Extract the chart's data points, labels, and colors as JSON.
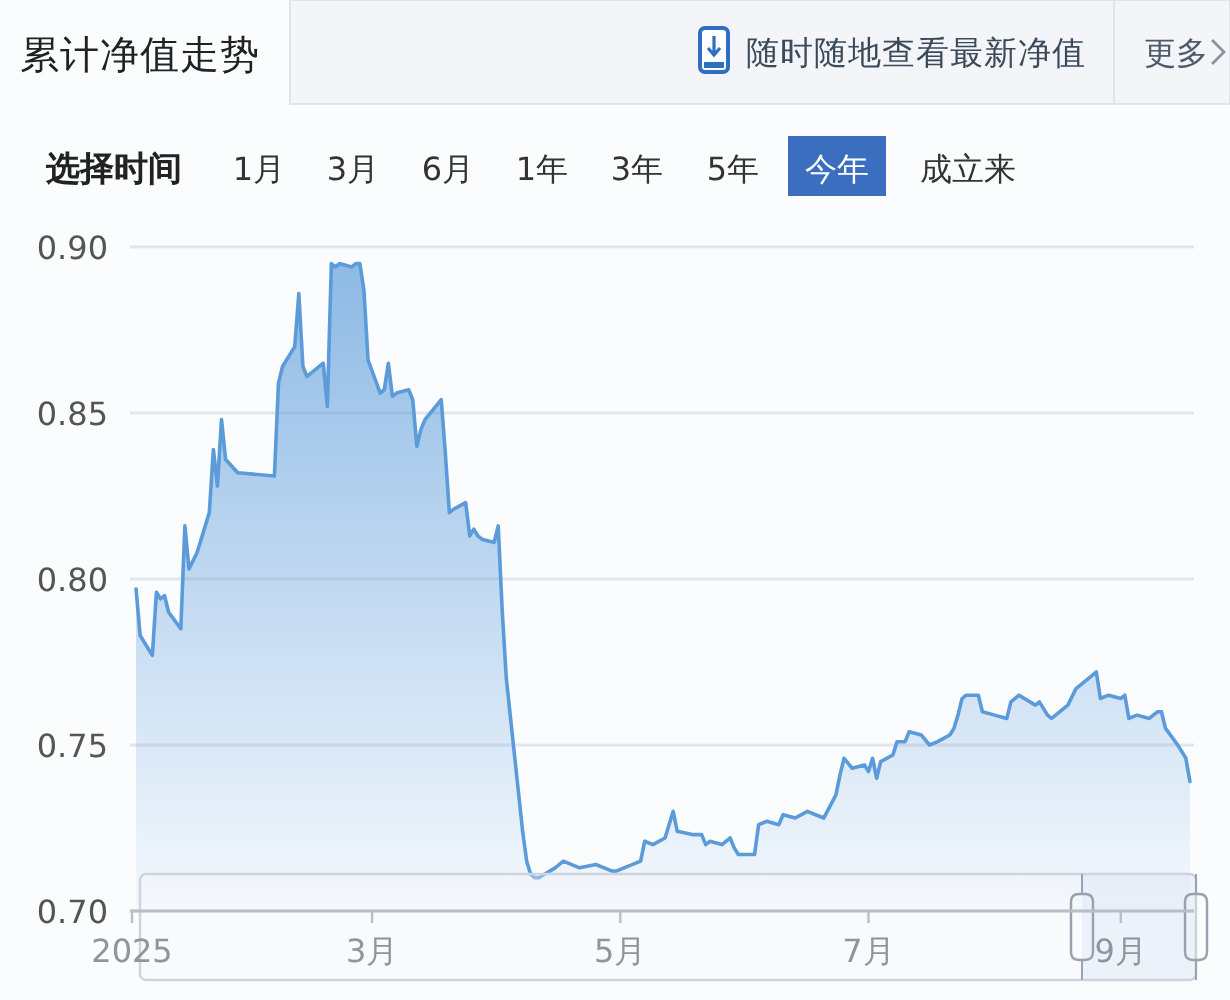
{
  "chart_data": {
    "type": "area",
    "title": "累计净值走势",
    "annotations": [
      "随时随地查看最新净值",
      "更多",
      "选择时间",
      "1月",
      "3月",
      "6月",
      "1年",
      "3年",
      "5年",
      "今年",
      "成立来"
    ],
    "color": "#5b9bd9",
    "x": [
      "2025-01-02",
      "2025-01-03",
      "2025-01-06",
      "2025-01-07",
      "2025-01-08",
      "2025-01-09",
      "2025-01-10",
      "2025-01-13",
      "2025-01-14",
      "2025-01-15",
      "2025-01-17",
      "2025-01-20",
      "2025-01-21",
      "2025-01-22",
      "2025-01-23",
      "2025-01-24",
      "2025-01-27",
      "2025-02-05",
      "2025-02-06",
      "2025-02-07",
      "2025-02-10",
      "2025-02-11",
      "2025-02-12",
      "2025-02-13",
      "2025-02-14",
      "2025-02-17",
      "2025-02-18",
      "2025-02-19",
      "2025-02-20",
      "2025-02-21",
      "2025-02-24",
      "2025-02-25",
      "2025-02-26",
      "2025-02-27",
      "2025-02-28",
      "2025-03-03",
      "2025-03-04",
      "2025-03-05",
      "2025-03-06",
      "2025-03-07",
      "2025-03-10",
      "2025-03-11",
      "2025-03-12",
      "2025-03-13",
      "2025-03-14",
      "2025-03-18",
      "2025-03-19",
      "2025-03-20",
      "2025-03-21",
      "2025-03-24",
      "2025-03-25",
      "2025-03-26",
      "2025-03-27",
      "2025-03-28",
      "2025-03-31",
      "2025-04-01",
      "2025-04-02",
      "2025-04-03",
      "2025-04-07",
      "2025-04-08",
      "2025-04-09",
      "2025-04-10",
      "2025-04-11",
      "2025-04-15",
      "2025-04-17",
      "2025-04-21",
      "2025-04-25",
      "2025-04-29",
      "2025-04-30",
      "2025-05-06",
      "2025-05-07",
      "2025-05-09",
      "2025-05-12",
      "2025-05-14",
      "2025-05-15",
      "2025-05-19",
      "2025-05-21",
      "2025-05-22",
      "2025-05-23",
      "2025-05-26",
      "2025-05-28",
      "2025-05-29",
      "2025-05-30",
      "2025-06-03",
      "2025-06-04",
      "2025-06-06",
      "2025-06-09",
      "2025-06-10",
      "2025-06-13",
      "2025-06-16",
      "2025-06-18",
      "2025-06-20",
      "2025-06-23",
      "2025-06-24",
      "2025-06-25",
      "2025-06-27",
      "2025-06-30",
      "2025-07-01",
      "2025-07-02",
      "2025-07-03",
      "2025-07-04",
      "2025-07-07",
      "2025-07-08",
      "2025-07-10",
      "2025-07-11",
      "2025-07-14",
      "2025-07-16",
      "2025-07-18",
      "2025-07-21",
      "2025-07-22",
      "2025-07-23",
      "2025-07-24",
      "2025-07-25",
      "2025-07-28",
      "2025-07-29",
      "2025-08-01",
      "2025-08-04",
      "2025-08-05",
      "2025-08-07",
      "2025-08-11",
      "2025-08-12",
      "2025-08-14",
      "2025-08-15",
      "2025-08-19",
      "2025-08-21",
      "2025-08-25",
      "2025-08-26",
      "2025-08-27",
      "2025-08-29",
      "2025-09-01",
      "2025-09-02",
      "2025-09-03",
      "2025-09-05",
      "2025-09-08",
      "2025-09-10",
      "2025-09-11",
      "2025-09-12",
      "2025-09-15",
      "2025-09-16",
      "2025-09-17",
      "2025-09-18"
    ],
    "values": [
      0.797,
      0.783,
      0.777,
      0.796,
      0.794,
      0.795,
      0.79,
      0.785,
      0.816,
      0.803,
      0.808,
      0.82,
      0.839,
      0.828,
      0.848,
      0.836,
      0.832,
      0.831,
      0.859,
      0.864,
      0.87,
      0.886,
      0.864,
      0.861,
      0.862,
      0.865,
      0.852,
      0.895,
      0.894,
      0.895,
      0.894,
      0.895,
      0.895,
      0.887,
      0.866,
      0.856,
      0.857,
      0.865,
      0.855,
      0.856,
      0.857,
      0.854,
      0.84,
      0.845,
      0.848,
      0.854,
      0.838,
      0.82,
      0.821,
      0.823,
      0.813,
      0.815,
      0.813,
      0.812,
      0.811,
      0.816,
      0.79,
      0.77,
      0.724,
      0.715,
      0.711,
      0.71,
      0.71,
      0.713,
      0.715,
      0.713,
      0.714,
      0.712,
      0.712,
      0.715,
      0.721,
      0.72,
      0.722,
      0.73,
      0.724,
      0.723,
      0.723,
      0.72,
      0.721,
      0.72,
      0.722,
      0.719,
      0.717,
      0.717,
      0.726,
      0.727,
      0.726,
      0.729,
      0.728,
      0.73,
      0.729,
      0.728,
      0.735,
      0.741,
      0.746,
      0.743,
      0.744,
      0.742,
      0.746,
      0.74,
      0.745,
      0.747,
      0.751,
      0.751,
      0.754,
      0.753,
      0.75,
      0.751,
      0.753,
      0.755,
      0.759,
      0.764,
      0.765,
      0.765,
      0.76,
      0.759,
      0.758,
      0.763,
      0.765,
      0.762,
      0.763,
      0.759,
      0.758,
      0.762,
      0.767,
      0.771,
      0.772,
      0.764,
      0.765,
      0.764,
      0.765,
      0.758,
      0.759,
      0.758,
      0.76,
      0.76,
      0.755,
      0.75,
      0.748,
      0.746,
      0.739
    ],
    "xlim": [
      "2025-01-01",
      "2025-09-19"
    ],
    "xticks": [
      {
        "value": "2025-01-01",
        "label": "2025"
      },
      {
        "value": "2025-03-01",
        "label": "3月"
      },
      {
        "value": "2025-05-01",
        "label": "5月"
      },
      {
        "value": "2025-07-01",
        "label": "7月"
      },
      {
        "value": "2025-09-01",
        "label": "9月"
      }
    ],
    "ylim": [
      0.7,
      0.9
    ],
    "yticks": [
      {
        "value": 0.7,
        "label": "0.70"
      },
      {
        "value": 0.75,
        "label": "0.75"
      },
      {
        "value": 0.8,
        "label": "0.80"
      },
      {
        "value": 0.85,
        "label": "0.85"
      },
      {
        "value": 0.9,
        "label": "0.90"
      }
    ],
    "grid": "y"
  }
}
